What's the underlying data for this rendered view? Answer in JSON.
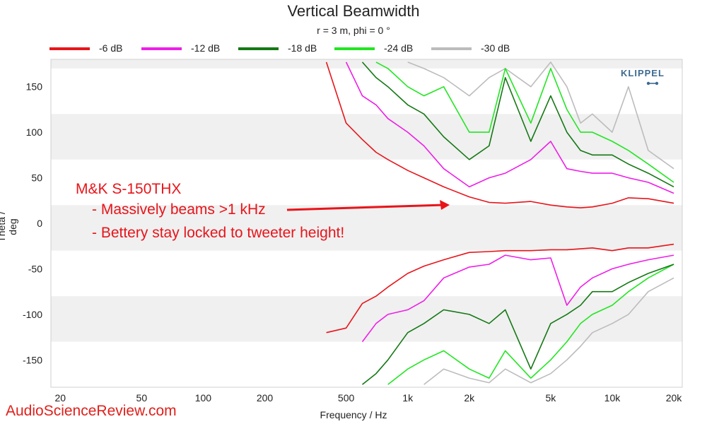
{
  "chart_data": {
    "type": "line",
    "title": "Vertical Beamwidth",
    "subtitle": "r = 3 m, phi = 0 °",
    "xlabel": "Frequency / Hz",
    "ylabel": "Theta / deg",
    "xscale": "log",
    "xlim": [
      18,
      22000
    ],
    "ylim": [
      -180,
      180
    ],
    "grid": "horizontal bands",
    "legend_position": "top",
    "x_ticks": [
      20,
      50,
      100,
      200,
      500,
      1000,
      2000,
      5000,
      10000,
      20000
    ],
    "x_tick_labels": [
      "20",
      "50",
      "100",
      "200",
      "500",
      "1k",
      "2k",
      "5k",
      "10k",
      "20k"
    ],
    "y_ticks": [
      150,
      100,
      50,
      0,
      -50,
      -100,
      -150
    ],
    "x": [
      400,
      500,
      600,
      700,
      800,
      1000,
      1200,
      1500,
      2000,
      2500,
      3000,
      4000,
      5000,
      6000,
      7000,
      8000,
      10000,
      12000,
      15000,
      20000
    ],
    "series": [
      {
        "name": "-6 dB",
        "color": "#e8141a",
        "upper": [
          180,
          110,
          92,
          78,
          70,
          58,
          50,
          40,
          29,
          23,
          22,
          24,
          20,
          18,
          17,
          18,
          22,
          28,
          27,
          22
        ],
        "lower": [
          -120,
          -115,
          -88,
          -80,
          -70,
          -55,
          -47,
          -40,
          -32,
          -31,
          -30,
          -30,
          -29,
          -29,
          -28,
          -27,
          -30,
          -27,
          -27,
          -23
        ]
      },
      {
        "name": "-12 dB",
        "color": "#ee1ee8",
        "upper": [
          null,
          180,
          140,
          130,
          115,
          100,
          85,
          60,
          40,
          50,
          55,
          70,
          90,
          60,
          57,
          55,
          55,
          50,
          45,
          33
        ],
        "lower": [
          null,
          null,
          -130,
          -110,
          -100,
          -95,
          -85,
          -60,
          -48,
          -45,
          -35,
          -40,
          -38,
          -90,
          -70,
          -60,
          -50,
          -45,
          -40,
          -35
        ]
      },
      {
        "name": "-18 dB",
        "color": "#147814",
        "upper": [
          null,
          null,
          180,
          160,
          150,
          130,
          120,
          95,
          70,
          85,
          160,
          90,
          140,
          100,
          80,
          75,
          75,
          65,
          55,
          40
        ],
        "lower": [
          null,
          null,
          -180,
          -165,
          -150,
          -120,
          -110,
          -95,
          -100,
          -110,
          -95,
          -160,
          -110,
          -100,
          -90,
          -75,
          -75,
          -65,
          -55,
          -45
        ]
      },
      {
        "name": "-24 dB",
        "color": "#22e622",
        "upper": [
          null,
          null,
          null,
          180,
          170,
          150,
          140,
          150,
          100,
          100,
          170,
          110,
          170,
          125,
          100,
          100,
          90,
          80,
          65,
          45
        ],
        "lower": [
          null,
          null,
          null,
          null,
          -180,
          -160,
          -150,
          -140,
          -160,
          -170,
          -140,
          -170,
          -150,
          -130,
          -110,
          -100,
          -90,
          -75,
          -60,
          -45
        ]
      },
      {
        "name": "-30 dB",
        "color": "#bcbcbc",
        "upper": [
          null,
          null,
          null,
          null,
          null,
          180,
          170,
          160,
          140,
          160,
          170,
          150,
          180,
          150,
          110,
          120,
          100,
          150,
          80,
          60
        ],
        "lower": [
          null,
          null,
          null,
          null,
          null,
          null,
          -180,
          -160,
          -170,
          -175,
          -160,
          -175,
          -165,
          -150,
          -135,
          -120,
          -110,
          -100,
          -75,
          -60
        ]
      }
    ]
  },
  "annotations": {
    "line1": "M&K S-150THX",
    "line2": "- Massively beams >1 kHz",
    "line3": "- Bettery stay locked to tweeter height!"
  },
  "branding": {
    "logo_text": "KLIPPEL",
    "watermark": "AudioScienceReview.com"
  }
}
